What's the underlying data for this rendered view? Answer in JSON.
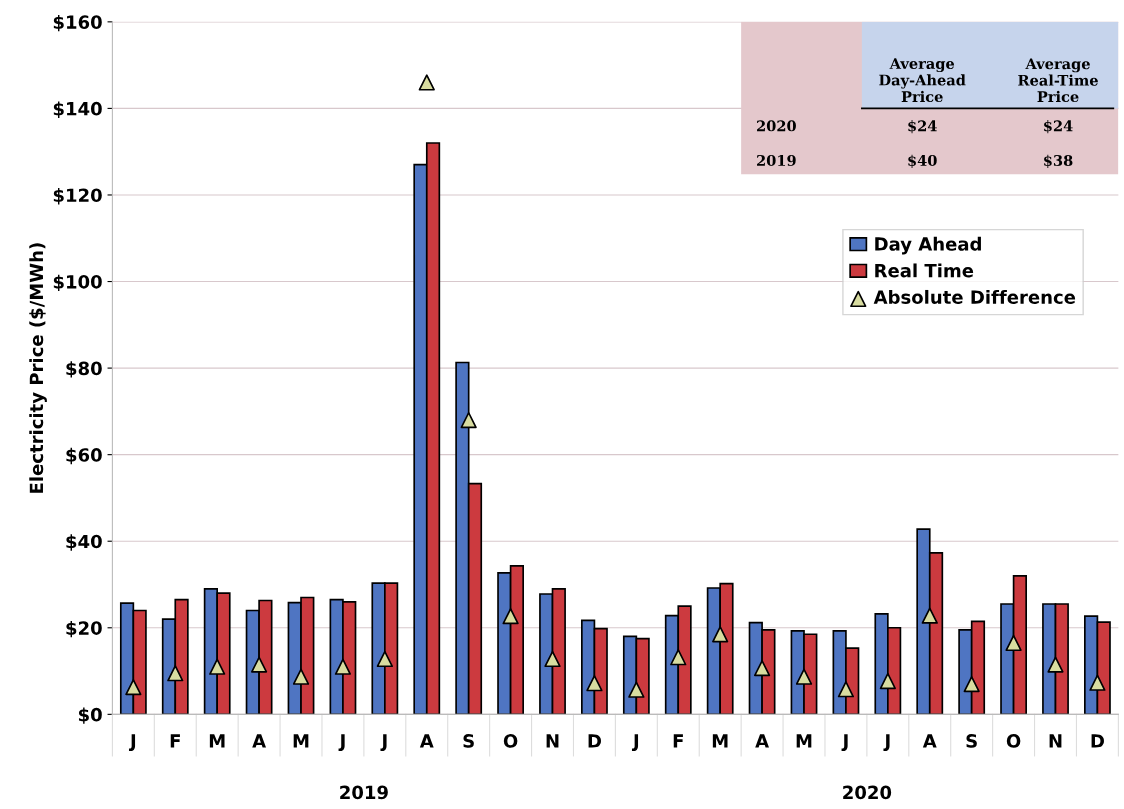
{
  "chart_data": {
    "type": "bar",
    "ylabel": "Electricity Price ($/MWh)",
    "categories": [
      "J",
      "F",
      "M",
      "A",
      "M",
      "J",
      "J",
      "A",
      "S",
      "O",
      "N",
      "D",
      "J",
      "F",
      "M",
      "A",
      "M",
      "J",
      "J",
      "A",
      "S",
      "O",
      "N",
      "D"
    ],
    "series": [
      {
        "name": "Day Ahead",
        "color": "#4f75c2",
        "values": [
          25.7,
          22,
          29,
          24,
          25.8,
          26.5,
          30.3,
          127,
          81.3,
          32.7,
          27.8,
          21.7,
          18,
          22.8,
          29.2,
          21.2,
          19.3,
          19.3,
          23.2,
          42.8,
          19.5,
          25.5,
          25.5,
          22.7
        ]
      },
      {
        "name": "Real Time",
        "color": "#cc3a3f",
        "values": [
          24,
          26.5,
          28,
          26.3,
          27,
          26,
          30.3,
          132,
          53.3,
          34.3,
          29,
          19.8,
          17.5,
          25,
          30.2,
          19.5,
          18.5,
          15.3,
          20,
          37.3,
          21.5,
          32,
          25.5,
          21.3
        ]
      },
      {
        "name": "Absolute Difference",
        "type": "scatter",
        "marker": "triangle",
        "color": "#d8dca0",
        "values": [
          6.3,
          9.5,
          11,
          11.5,
          8.7,
          11,
          12.8,
          146,
          68,
          22.7,
          12.8,
          7.2,
          5.7,
          13.2,
          18.5,
          10.7,
          8.7,
          5.8,
          7.7,
          22.8,
          7,
          16.5,
          11.5,
          7.3
        ]
      }
    ],
    "ylim": [
      0,
      160
    ],
    "yticks": [
      {
        "value": 0,
        "label": "$0"
      },
      {
        "value": 20,
        "label": "$20"
      },
      {
        "value": 40,
        "label": "$40"
      },
      {
        "value": 60,
        "label": "$60"
      },
      {
        "value": 80,
        "label": "$80"
      },
      {
        "value": 100,
        "label": "$100"
      },
      {
        "value": 120,
        "label": "$120"
      },
      {
        "value": 140,
        "label": "$140"
      },
      {
        "value": 160,
        "label": "$160"
      }
    ],
    "grid": "y",
    "legend": "top right",
    "annotations": [
      "2019",
      "2020",
      "Average\nDay-Ahead\nPrice",
      "Average\nReal-Time\nPrice",
      "2020",
      "$24",
      "$24",
      "2019",
      "$40",
      "$38"
    ]
  }
}
